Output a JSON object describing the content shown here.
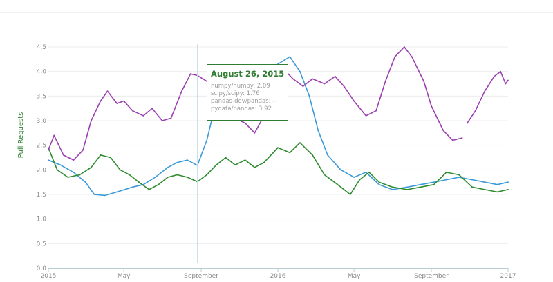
{
  "chart_data": {
    "type": "line",
    "title": "",
    "xlabel": "",
    "ylabel": "Pull Requests",
    "ylim": [
      0,
      4.5
    ],
    "xlim": [
      "2015-01-01",
      "2017-01-01"
    ],
    "y_ticks": [
      "0.0",
      "0.5",
      "1.0",
      "1.5",
      "2.0",
      "2.5",
      "3.0",
      "3.5",
      "4.0",
      "4.5"
    ],
    "x_ticks": [
      {
        "date": "2015-01-01",
        "label": "2015"
      },
      {
        "date": "2015-05-01",
        "label": "May"
      },
      {
        "date": "2015-09-01",
        "label": "September"
      },
      {
        "date": "2016-01-01",
        "label": "2016"
      },
      {
        "date": "2016-05-01",
        "label": "May"
      },
      {
        "date": "2016-09-01",
        "label": "September"
      },
      {
        "date": "2017-01-01",
        "label": "2017"
      }
    ],
    "grid": true,
    "series": [
      {
        "name": "numpy/numpy",
        "color": "#3a9ad9",
        "points": [
          [
            "2015-01-01",
            2.2
          ],
          [
            "2015-01-20",
            2.1
          ],
          [
            "2015-02-10",
            1.95
          ],
          [
            "2015-03-01",
            1.75
          ],
          [
            "2015-03-15",
            1.5
          ],
          [
            "2015-04-01",
            1.48
          ],
          [
            "2015-04-20",
            1.55
          ],
          [
            "2015-05-15",
            1.65
          ],
          [
            "2015-06-01",
            1.7
          ],
          [
            "2015-06-20",
            1.85
          ],
          [
            "2015-07-10",
            2.05
          ],
          [
            "2015-07-25",
            2.15
          ],
          [
            "2015-08-10",
            2.2
          ],
          [
            "2015-08-26",
            2.09
          ],
          [
            "2015-09-10",
            2.6
          ],
          [
            "2015-09-25",
            3.4
          ],
          [
            "2015-10-15",
            3.9
          ],
          [
            "2015-11-05",
            3.6
          ],
          [
            "2015-11-25",
            3.3
          ],
          [
            "2015-12-15",
            3.7
          ],
          [
            "2016-01-01",
            4.15
          ],
          [
            "2016-01-20",
            4.3
          ],
          [
            "2016-02-05",
            4.0
          ],
          [
            "2016-02-20",
            3.5
          ],
          [
            "2016-03-05",
            2.8
          ],
          [
            "2016-03-20",
            2.3
          ],
          [
            "2016-04-10",
            2.0
          ],
          [
            "2016-05-01",
            1.85
          ],
          [
            "2016-05-20",
            1.95
          ],
          [
            "2016-06-10",
            1.7
          ],
          [
            "2016-07-01",
            1.6
          ],
          [
            "2016-07-25",
            1.65
          ],
          [
            "2016-08-15",
            1.7
          ],
          [
            "2016-09-05",
            1.75
          ],
          [
            "2016-09-25",
            1.8
          ],
          [
            "2016-10-15",
            1.85
          ],
          [
            "2016-11-05",
            1.8
          ],
          [
            "2016-11-25",
            1.75
          ],
          [
            "2016-12-15",
            1.7
          ],
          [
            "2017-01-01",
            1.75
          ]
        ]
      },
      {
        "name": "scipy/scipy",
        "color": "#2e8b2e",
        "points": [
          [
            "2015-01-01",
            2.45
          ],
          [
            "2015-01-15",
            2.0
          ],
          [
            "2015-02-01",
            1.85
          ],
          [
            "2015-02-20",
            1.9
          ],
          [
            "2015-03-10",
            2.05
          ],
          [
            "2015-03-25",
            2.3
          ],
          [
            "2015-04-10",
            2.25
          ],
          [
            "2015-04-25",
            2.0
          ],
          [
            "2015-05-10",
            1.9
          ],
          [
            "2015-05-25",
            1.75
          ],
          [
            "2015-06-10",
            1.6
          ],
          [
            "2015-06-25",
            1.7
          ],
          [
            "2015-07-10",
            1.85
          ],
          [
            "2015-07-25",
            1.9
          ],
          [
            "2015-08-10",
            1.85
          ],
          [
            "2015-08-26",
            1.76
          ],
          [
            "2015-09-10",
            1.9
          ],
          [
            "2015-09-25",
            2.1
          ],
          [
            "2015-10-10",
            2.25
          ],
          [
            "2015-10-25",
            2.1
          ],
          [
            "2015-11-10",
            2.2
          ],
          [
            "2015-11-25",
            2.05
          ],
          [
            "2015-12-10",
            2.15
          ],
          [
            "2016-01-01",
            2.45
          ],
          [
            "2016-01-20",
            2.35
          ],
          [
            "2016-02-05",
            2.55
          ],
          [
            "2016-02-25",
            2.3
          ],
          [
            "2016-03-15",
            1.9
          ],
          [
            "2016-04-05",
            1.7
          ],
          [
            "2016-04-25",
            1.5
          ],
          [
            "2016-05-10",
            1.8
          ],
          [
            "2016-05-25",
            1.95
          ],
          [
            "2016-06-10",
            1.75
          ],
          [
            "2016-07-01",
            1.65
          ],
          [
            "2016-07-25",
            1.6
          ],
          [
            "2016-08-15",
            1.65
          ],
          [
            "2016-09-05",
            1.7
          ],
          [
            "2016-09-25",
            1.95
          ],
          [
            "2016-10-15",
            1.9
          ],
          [
            "2016-11-05",
            1.65
          ],
          [
            "2016-11-25",
            1.6
          ],
          [
            "2016-12-15",
            1.55
          ],
          [
            "2017-01-01",
            1.6
          ]
        ]
      },
      {
        "name": "pydata/pandas",
        "color": "#9b3fb0",
        "points": [
          [
            "2015-01-01",
            2.4
          ],
          [
            "2015-01-10",
            2.7
          ],
          [
            "2015-01-25",
            2.3
          ],
          [
            "2015-02-10",
            2.2
          ],
          [
            "2015-02-25",
            2.4
          ],
          [
            "2015-03-10",
            3.0
          ],
          [
            "2015-03-25",
            3.4
          ],
          [
            "2015-04-05",
            3.6
          ],
          [
            "2015-04-20",
            3.35
          ],
          [
            "2015-05-01",
            3.4
          ],
          [
            "2015-05-15",
            3.2
          ],
          [
            "2015-06-01",
            3.1
          ],
          [
            "2015-06-15",
            3.25
          ],
          [
            "2015-07-01",
            3.0
          ],
          [
            "2015-07-15",
            3.05
          ],
          [
            "2015-08-01",
            3.6
          ],
          [
            "2015-08-15",
            3.95
          ],
          [
            "2015-08-26",
            3.92
          ],
          [
            "2015-09-10",
            3.8
          ],
          [
            "2015-09-25",
            3.45
          ],
          [
            "2015-10-10",
            3.3
          ],
          [
            "2015-10-25",
            3.05
          ],
          [
            "2015-11-10",
            2.95
          ],
          [
            "2015-11-25",
            2.75
          ],
          [
            "2015-12-10",
            3.1
          ],
          [
            "2015-12-25",
            3.6
          ],
          [
            "2016-01-10",
            4.05
          ],
          [
            "2016-01-25",
            3.85
          ],
          [
            "2016-02-10",
            3.7
          ],
          [
            "2016-02-25",
            3.85
          ],
          [
            "2016-03-15",
            3.75
          ],
          [
            "2016-04-01",
            3.9
          ],
          [
            "2016-04-15",
            3.7
          ],
          [
            "2016-05-01",
            3.4
          ],
          [
            "2016-05-20",
            3.1
          ],
          [
            "2016-06-05",
            3.2
          ],
          [
            "2016-06-20",
            3.8
          ],
          [
            "2016-07-05",
            4.3
          ],
          [
            "2016-07-20",
            4.5
          ],
          [
            "2016-08-01",
            4.3
          ],
          [
            "2016-08-20",
            3.8
          ],
          [
            "2016-09-01",
            3.3
          ],
          [
            "2016-09-20",
            2.8
          ],
          [
            "2016-10-05",
            2.6
          ],
          [
            "2016-10-20",
            2.65
          ],
          [
            "2016-10-25",
            null
          ],
          [
            "2016-10-28",
            2.95
          ],
          [
            "2016-11-10",
            3.2
          ],
          [
            "2016-11-25",
            3.6
          ],
          [
            "2016-12-10",
            3.9
          ],
          [
            "2016-12-20",
            4.0
          ],
          [
            "2016-12-28",
            3.75
          ],
          [
            "2017-01-01",
            3.82
          ]
        ]
      }
    ],
    "crosshair_date": "2015-08-26",
    "tooltip": {
      "title": "August 26, 2015",
      "rows": [
        {
          "name": "numpy/numpy",
          "value": "2.09"
        },
        {
          "name": "scipy/scipy",
          "value": "1.76"
        },
        {
          "name": "pandas-dev/pandas",
          "value": "--"
        },
        {
          "name": "pydata/pandas",
          "value": "3.92"
        }
      ]
    }
  }
}
